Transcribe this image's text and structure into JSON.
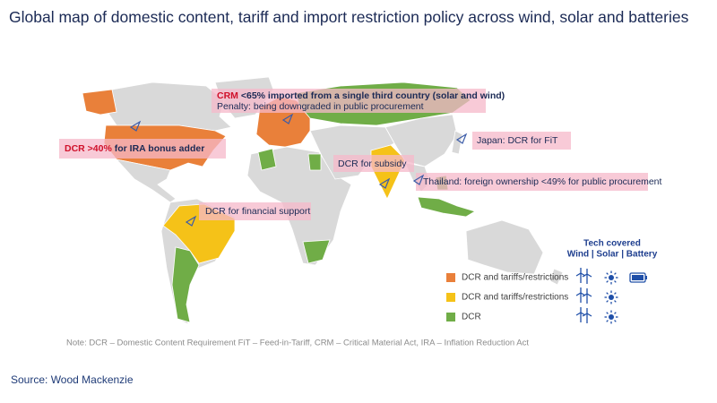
{
  "title": "Global map of domestic content, tariff and import restriction policy across wind, solar and batteries",
  "annotations": [
    {
      "parts": [
        "CRM",
        "<65% imported from a single third country (solar and wind)"
      ]
    },
    {
      "parts": [
        "Penalty: being downgraded in public procurement"
      ]
    },
    {
      "parts": [
        "DCR >40%",
        "for IRA bonus adder"
      ]
    },
    {
      "parts": [
        "Japan: DCR for FiT"
      ]
    },
    {
      "parts": [
        "DCR for subsidy"
      ]
    },
    {
      "parts": [
        "Thailand: foreign ownership <49% for public procurement"
      ]
    },
    {
      "parts": [
        "DCR for financial support"
      ]
    }
  ],
  "legend": {
    "title": "Tech covered",
    "subtitle": "Wind | Solar | Battery",
    "items": [
      {
        "label": "DCR and tariffs/restrictions",
        "color": "#e9803a"
      },
      {
        "label": "DCR and tariffs/restrictions",
        "color": "#f5c218"
      },
      {
        "label": "DCR",
        "color": "#70ad47"
      }
    ]
  },
  "note": "Note: DCR – Domestic Content Requirement FiT – Feed-in-Tariff, CRM – Critical Material Act, IRA – Inflation Reduction Act",
  "source": "Source: Wood Mackenzie"
}
